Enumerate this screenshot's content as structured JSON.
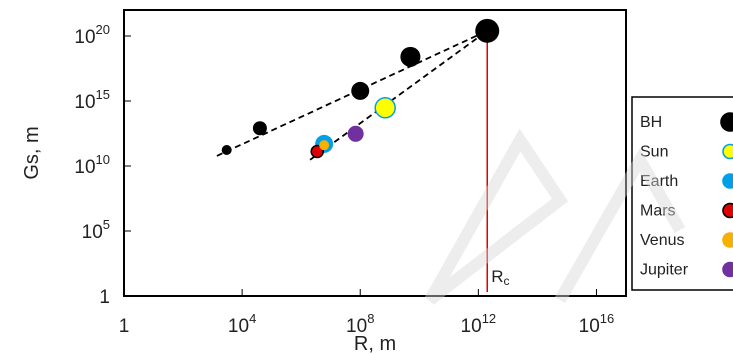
{
  "chart_data": {
    "type": "scatter",
    "title": "",
    "xlabel": "R, m",
    "ylabel": "Gs, m",
    "xscale": "log",
    "yscale": "log",
    "xlim": [
      1,
      1e+17
    ],
    "ylim": [
      1,
      1e+22
    ],
    "xticks": [
      {
        "value": 1,
        "label": "1"
      },
      {
        "value": 10000.0,
        "label": "10^4"
      },
      {
        "value": 100000000.0,
        "label": "10^8"
      },
      {
        "value": 1000000000000.0,
        "label": "10^12"
      },
      {
        "value": 1e+16,
        "label": "10^16"
      }
    ],
    "yticks": [
      {
        "value": 1,
        "label": "1"
      },
      {
        "value": 100000.0,
        "label": "10^5"
      },
      {
        "value": 10000000000.0,
        "label": "10^10"
      },
      {
        "value": 1000000000000000.0,
        "label": "10^15"
      },
      {
        "value": 1e+20,
        "label": "10^20"
      }
    ],
    "grid": false,
    "legend_position": "right",
    "series": [
      {
        "name": "BH",
        "color": "#000000",
        "points": [
          {
            "x": 3000,
            "y": 170000000000.0,
            "size": 5
          },
          {
            "x": 40000,
            "y": 8000000000000.0,
            "size": 7
          },
          {
            "x": 100000000.0,
            "y": 6000000000000000.0,
            "size": 9
          },
          {
            "x": 5000000000.0,
            "y": 2.5e+18,
            "size": 10
          },
          {
            "x": 2000000000000.0,
            "y": 2.5e+20,
            "size": 12
          }
        ]
      },
      {
        "name": "Sun",
        "color": "#ffff00",
        "points": [
          {
            "x": 700000000.0,
            "y": 300000000000000.0,
            "size": 10
          }
        ]
      },
      {
        "name": "Earth",
        "color": "#00a0e8",
        "points": [
          {
            "x": 6000000.0,
            "y": 500000000000.0,
            "size": 9
          }
        ]
      },
      {
        "name": "Mars",
        "color": "#e00000",
        "points": [
          {
            "x": 3500000.0,
            "y": 130000000000.0,
            "size": 6
          }
        ]
      },
      {
        "name": "Venus",
        "color": "#f5b000",
        "points": [
          {
            "x": 6000000.0,
            "y": 400000000000.0,
            "size": 5
          }
        ]
      },
      {
        "name": "Jupiter",
        "color": "#7030a0",
        "points": [
          {
            "x": 70000000.0,
            "y": 3000000000000.0,
            "size": 8
          }
        ]
      }
    ],
    "fit_lines": [
      {
        "style": "dashed",
        "color": "#000000",
        "x": [
          1400,
          2000000000000.0
        ],
        "y": [
          60000000000.0,
          2.5e+20
        ]
      },
      {
        "style": "dashed",
        "color": "#000000",
        "x": [
          2000000.0,
          2000000000000.0
        ],
        "y": [
          30000000000.0,
          2.5e+20
        ]
      }
    ],
    "annotations": [
      {
        "type": "vline",
        "x": 2000000000000.0,
        "color": "#e00000",
        "label": "Rc"
      }
    ]
  },
  "legend": {
    "items": [
      {
        "label": "BH",
        "color": "#000000",
        "stroke": "#000000"
      },
      {
        "label": "Sun",
        "color": "#ffff00",
        "stroke": "#00a0e8"
      },
      {
        "label": "Earth",
        "color": "#00a0e8",
        "stroke": "#00a0e8"
      },
      {
        "label": "Mars",
        "color": "#e00000",
        "stroke": "#000000"
      },
      {
        "label": "Venus",
        "color": "#f5b000",
        "stroke": "#f5b000"
      },
      {
        "label": "Jupiter",
        "color": "#7030a0",
        "stroke": "#7030a0"
      }
    ]
  }
}
